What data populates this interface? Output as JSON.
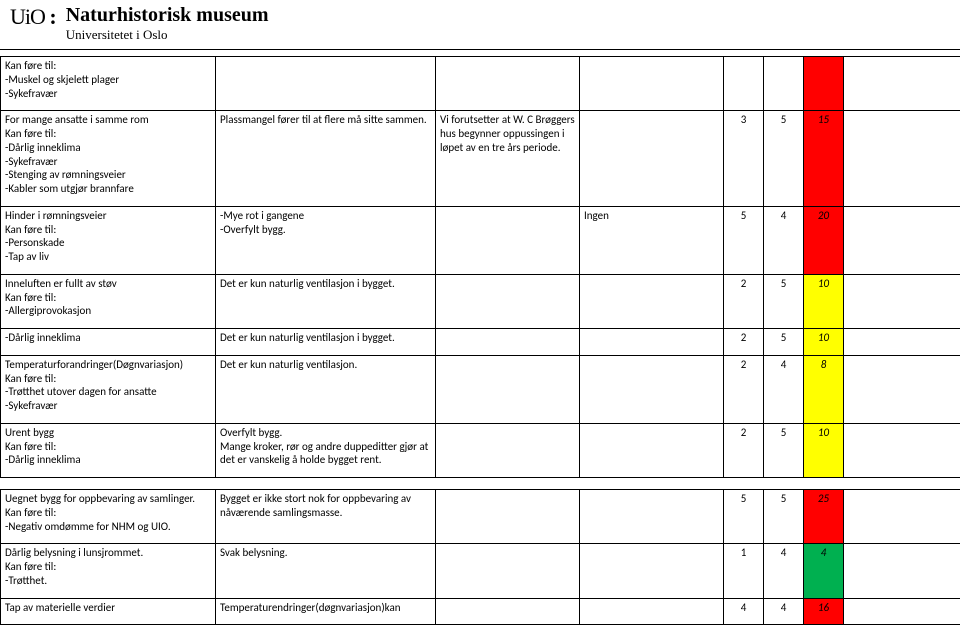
{
  "header": {
    "logo": "UiO",
    "title": "Naturhistorisk museum",
    "subtitle": "Universitetet i Oslo"
  },
  "rows": [
    {
      "c1": "Kan føre til:\n-Muskel og skjelett plager\n-Sykefravær",
      "c2": "",
      "c3": "",
      "c4": "",
      "v1": "",
      "v2": "",
      "v3": "",
      "color": "c-red"
    },
    {
      "c1": "For mange ansatte i samme rom\nKan føre til:\n-Dårlig inneklima\n-Sykefravær\n-Stenging av rømningsveier\n-Kabler som utgjør brannfare",
      "c2": "Plassmangel fører til at flere må sitte sammen.",
      "c3": "Vi forutsetter at W. C Brøggers hus begynner oppussingen i løpet av en tre års periode.",
      "c4": "",
      "v1": "3",
      "v2": "5",
      "v3": "15",
      "color": "c-red"
    },
    {
      "c1": "Hinder i rømningsveier\nKan føre til:\n-Personskade\n-Tap av liv",
      "c2": "-Mye rot i gangene\n-Overfylt bygg.",
      "c3": "",
      "c4": "Ingen",
      "v1": "5",
      "v2": "4",
      "v3": "20",
      "color": "c-red"
    },
    {
      "c1": "Inneluften er fullt av støv\nKan føre til:\n-Allergiprovokasjon",
      "c2": "Det er kun naturlig ventilasjon i bygget.",
      "c3": "",
      "c4": "",
      "v1": "2",
      "v2": "5",
      "v3": "10",
      "color": "c-yellow"
    },
    {
      "c1": "-Dårlig inneklima",
      "c2": "Det er kun naturlig ventilasjon i bygget.",
      "c3": "",
      "c4": "",
      "v1": "2",
      "v2": "5",
      "v3": "10",
      "color": "c-yellow"
    },
    {
      "c1": "Temperaturforandringer(Døgnvariasjon)\nKan føre til:\n-Trøtthet utover dagen for ansatte\n-Sykefravær",
      "c2": "Det er kun naturlig ventilasjon.",
      "c3": "",
      "c4": "",
      "v1": "2",
      "v2": "4",
      "v3": "8",
      "color": "c-yellow"
    },
    {
      "c1": "Urent bygg\nKan føre til:\n-Dårlig inneklima",
      "c2": "Overfylt bygg.\nMange kroker, rør og andre duppeditter gjør at det er vanskelig å holde bygget rent.",
      "c3": "",
      "c4": "",
      "v1": "2",
      "v2": "5",
      "v3": "10",
      "color": "c-yellow"
    }
  ],
  "rows2": [
    {
      "c1": "Uegnet bygg for oppbevaring av samlinger.\nKan føre til:\n-Negativ omdømme for NHM og UIO.",
      "c2": "Bygget er ikke stort nok for oppbevaring av nåværende samlingsmasse.",
      "c3": "",
      "c4": "",
      "v1": "5",
      "v2": "5",
      "v3": "25",
      "color": "c-red"
    },
    {
      "c1": "Dårlig belysning i lunsjrommet.\nKan føre til:\n-Trøtthet.",
      "c2": "Svak belysning.",
      "c3": "",
      "c4": "",
      "v1": "1",
      "v2": "4",
      "v3": "4",
      "color": "c-green"
    },
    {
      "c1": "Tap av materielle verdier",
      "c2": "Temperaturendringer(døgnvariasjon)kan",
      "c3": "",
      "c4": "",
      "v1": "4",
      "v2": "4",
      "v3": "16",
      "color": "c-red"
    }
  ]
}
